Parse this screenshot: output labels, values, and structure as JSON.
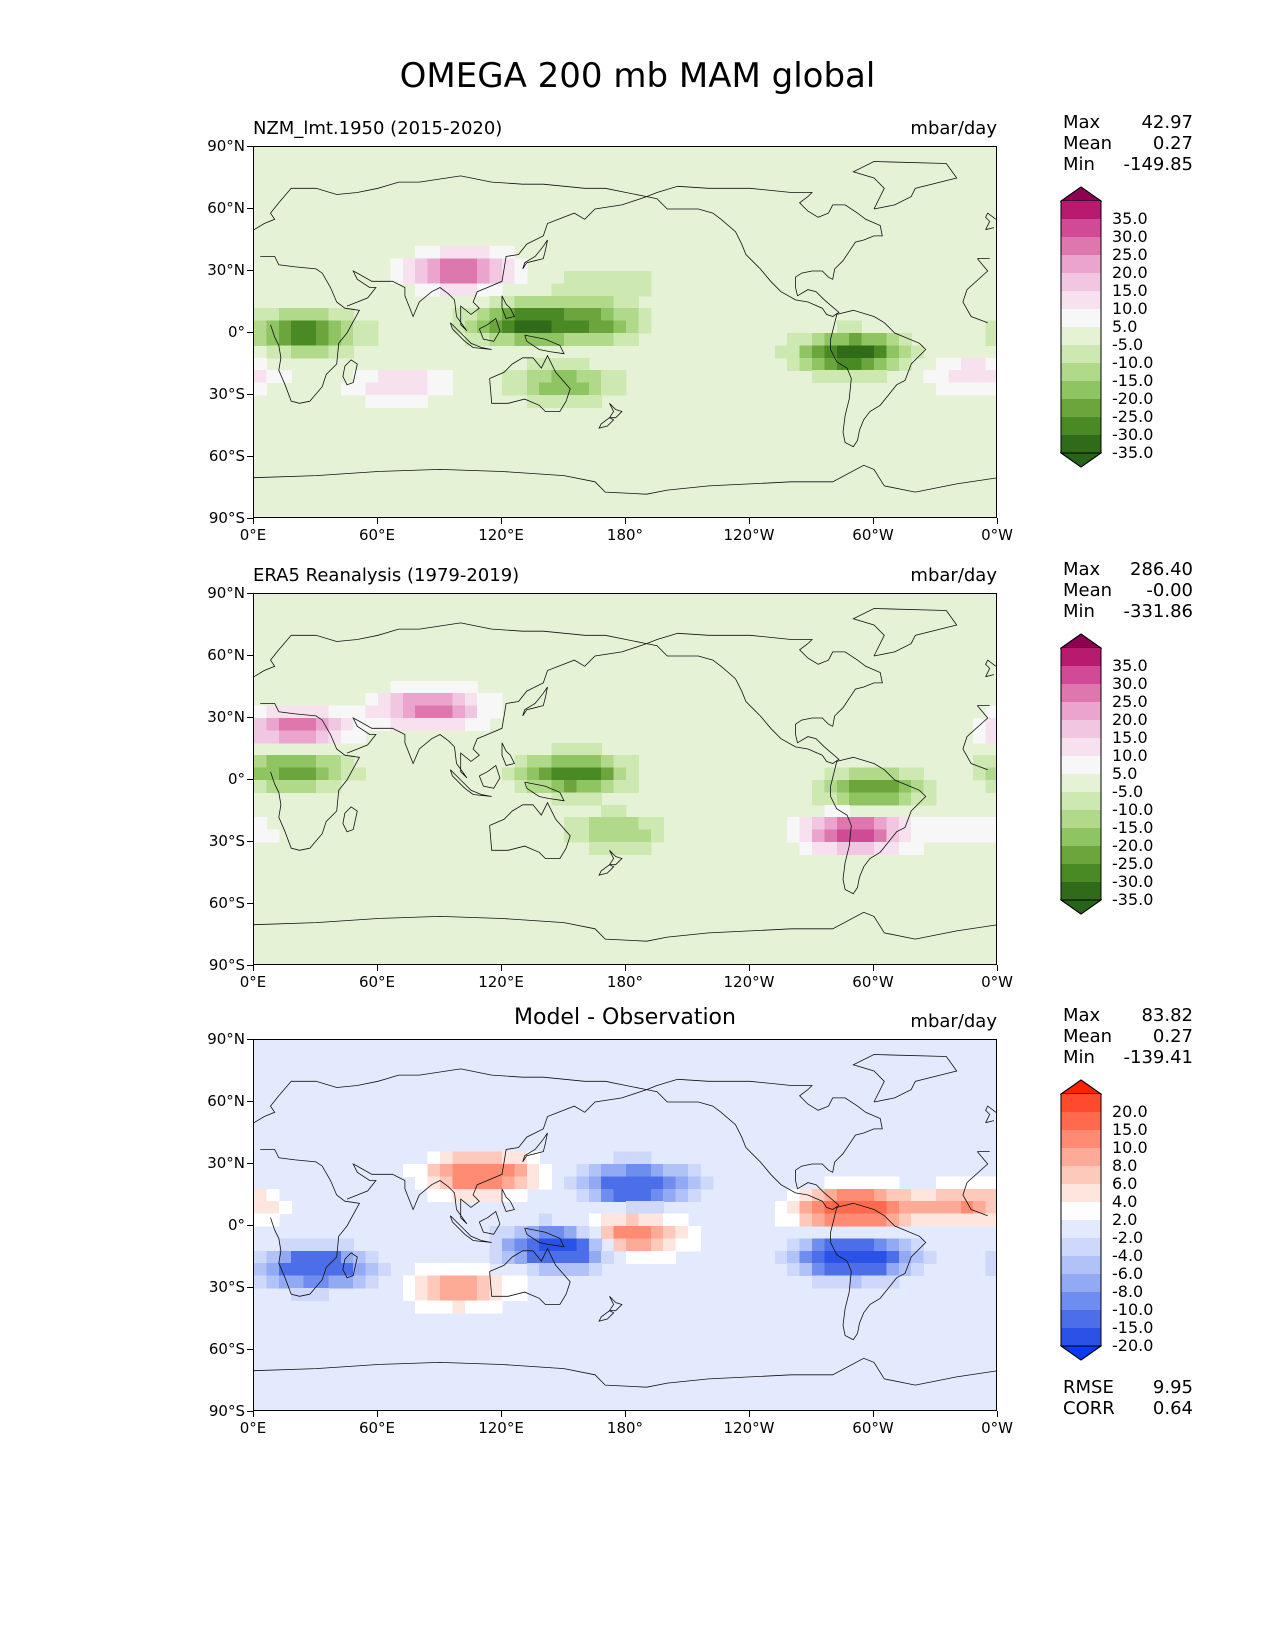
{
  "suptitle": "OMEGA 200 mb MAM global",
  "units": "mbar/day",
  "x_ticks": [
    "0°E",
    "60°E",
    "120°E",
    "180°",
    "120°W",
    "60°W",
    "0°W"
  ],
  "y_ticks": [
    "90°N",
    "60°N",
    "30°N",
    "0°",
    "30°S",
    "60°S",
    "90°S"
  ],
  "panels": [
    {
      "title": "NZM_lmt.1950 (2015-2020)",
      "title_pos": "left",
      "stats": {
        "max_label": "Max",
        "max": "42.97",
        "mean_label": "Mean",
        "mean": "0.27",
        "min_label": "Min",
        "min": "-149.85"
      },
      "colorbar": {
        "labels": [
          "35.0",
          "30.0",
          "25.0",
          "20.0",
          "15.0",
          "10.0",
          "5.0",
          "-5.0",
          "-10.0",
          "-15.0",
          "-20.0",
          "-25.0",
          "-30.0",
          "-35.0"
        ],
        "colors": [
          "#8e0152",
          "#b81a70",
          "#d04a96",
          "#de77ae",
          "#eaa4cd",
          "#f1c6e0",
          "#f7e1ee",
          "#f7f7f7",
          "#e6f2d6",
          "#cde8b1",
          "#b1d98a",
          "#8fc462",
          "#6ba53c",
          "#4a8a24",
          "#2f6b18",
          "#276419"
        ]
      }
    },
    {
      "title": "ERA5 Reanalysis (1979-2019)",
      "title_pos": "left",
      "stats": {
        "max_label": "Max",
        "max": "286.40",
        "mean_label": "Mean",
        "mean": "-0.00",
        "min_label": "Min",
        "min": "-331.86"
      },
      "colorbar": {
        "labels": [
          "35.0",
          "30.0",
          "25.0",
          "20.0",
          "15.0",
          "10.0",
          "5.0",
          "-5.0",
          "-10.0",
          "-15.0",
          "-20.0",
          "-25.0",
          "-30.0",
          "-35.0"
        ],
        "colors": [
          "#8e0152",
          "#b81a70",
          "#d04a96",
          "#de77ae",
          "#eaa4cd",
          "#f1c6e0",
          "#f7e1ee",
          "#f7f7f7",
          "#e6f2d6",
          "#cde8b1",
          "#b1d98a",
          "#8fc462",
          "#6ba53c",
          "#4a8a24",
          "#2f6b18",
          "#276419"
        ]
      }
    },
    {
      "title": "Model - Observation",
      "title_pos": "center",
      "stats": {
        "max_label": "Max",
        "max": "83.82",
        "mean_label": "Mean",
        "mean": "0.27",
        "min_label": "Min",
        "min": "-139.41"
      },
      "colorbar": {
        "labels": [
          "20.0",
          "15.0",
          "10.0",
          "8.0",
          "6.0",
          "4.0",
          "2.0",
          "-2.0",
          "-4.0",
          "-6.0",
          "-8.0",
          "-10.0",
          "-15.0",
          "-20.0"
        ],
        "colors": [
          "#ff2200",
          "#ff4a2e",
          "#ff6a4e",
          "#fe8b72",
          "#fdab97",
          "#fdc9bb",
          "#fee6de",
          "#ffffff",
          "#e4eafd",
          "#cdd8fb",
          "#b0c2f8",
          "#92a9f4",
          "#6f8cef",
          "#4c6fe9",
          "#2a52e6",
          "#0a3af5"
        ]
      },
      "metrics": {
        "rmse_label": "RMSE",
        "rmse": "9.95",
        "corr_label": "CORR",
        "corr": "0.64"
      }
    }
  ],
  "chart_data": [
    {
      "type": "heatmap",
      "title": "NZM_lmt.1950 (2015-2020)",
      "variable": "OMEGA 200 mb MAM",
      "units": "mbar/day",
      "xlim": [
        0,
        360
      ],
      "ylim": [
        -90,
        90
      ],
      "levels": [
        -35,
        -30,
        -25,
        -20,
        -15,
        -10,
        -5,
        5,
        10,
        15,
        20,
        25,
        30,
        35
      ],
      "max": 42.97,
      "mean": 0.27,
      "min": -149.85,
      "features": [
        {
          "lon": 130,
          "lat": 5,
          "value": -30
        },
        {
          "lon": 165,
          "lat": 5,
          "value": -20
        },
        {
          "lon": 25,
          "lat": 0,
          "value": -30
        },
        {
          "lon": 290,
          "lat": -10,
          "value": -35
        },
        {
          "lon": 150,
          "lat": -25,
          "value": -20
        },
        {
          "lon": 100,
          "lat": 30,
          "value": 30
        },
        {
          "lon": 70,
          "lat": -25,
          "value": 15
        },
        {
          "lon": 350,
          "lat": -20,
          "value": 15
        },
        {
          "lon": 170,
          "lat": 25,
          "value": -10
        }
      ]
    },
    {
      "type": "heatmap",
      "title": "ERA5 Reanalysis (1979-2019)",
      "variable": "OMEGA 200 mb MAM",
      "units": "mbar/day",
      "xlim": [
        0,
        360
      ],
      "ylim": [
        -90,
        90
      ],
      "levels": [
        -35,
        -30,
        -25,
        -20,
        -15,
        -10,
        -5,
        5,
        10,
        15,
        20,
        25,
        30,
        35
      ],
      "max": 286.4,
      "mean": -0.0,
      "min": -331.86,
      "features": [
        {
          "lon": 155,
          "lat": 3,
          "value": -30
        },
        {
          "lon": 300,
          "lat": -5,
          "value": -25
        },
        {
          "lon": 20,
          "lat": 5,
          "value": -25
        },
        {
          "lon": 20,
          "lat": 25,
          "value": 30
        },
        {
          "lon": 85,
          "lat": 35,
          "value": 30
        },
        {
          "lon": 290,
          "lat": -25,
          "value": 35
        },
        {
          "lon": 175,
          "lat": -25,
          "value": -15
        },
        {
          "lon": 350,
          "lat": -25,
          "value": 10
        }
      ]
    },
    {
      "type": "heatmap",
      "title": "Model - Observation",
      "variable": "OMEGA 200 mb MAM difference",
      "units": "mbar/day",
      "xlim": [
        0,
        360
      ],
      "ylim": [
        -90,
        90
      ],
      "levels": [
        -20,
        -15,
        -10,
        -8,
        -6,
        -4,
        -2,
        2,
        4,
        6,
        8,
        10,
        15,
        20
      ],
      "max": 83.82,
      "mean": 0.27,
      "min": -139.41,
      "rmse": 9.95,
      "corr": 0.64,
      "features": [
        {
          "lon": 150,
          "lat": -10,
          "value": -20
        },
        {
          "lon": 290,
          "lat": -15,
          "value": -20
        },
        {
          "lon": 185,
          "lat": 20,
          "value": -15
        },
        {
          "lon": 30,
          "lat": -20,
          "value": -15
        },
        {
          "lon": 290,
          "lat": 8,
          "value": 20
        },
        {
          "lon": 110,
          "lat": 25,
          "value": 15
        },
        {
          "lon": 180,
          "lat": -5,
          "value": 15
        },
        {
          "lon": 100,
          "lat": -30,
          "value": 10
        },
        {
          "lon": 345,
          "lat": 10,
          "value": 10
        }
      ]
    }
  ]
}
